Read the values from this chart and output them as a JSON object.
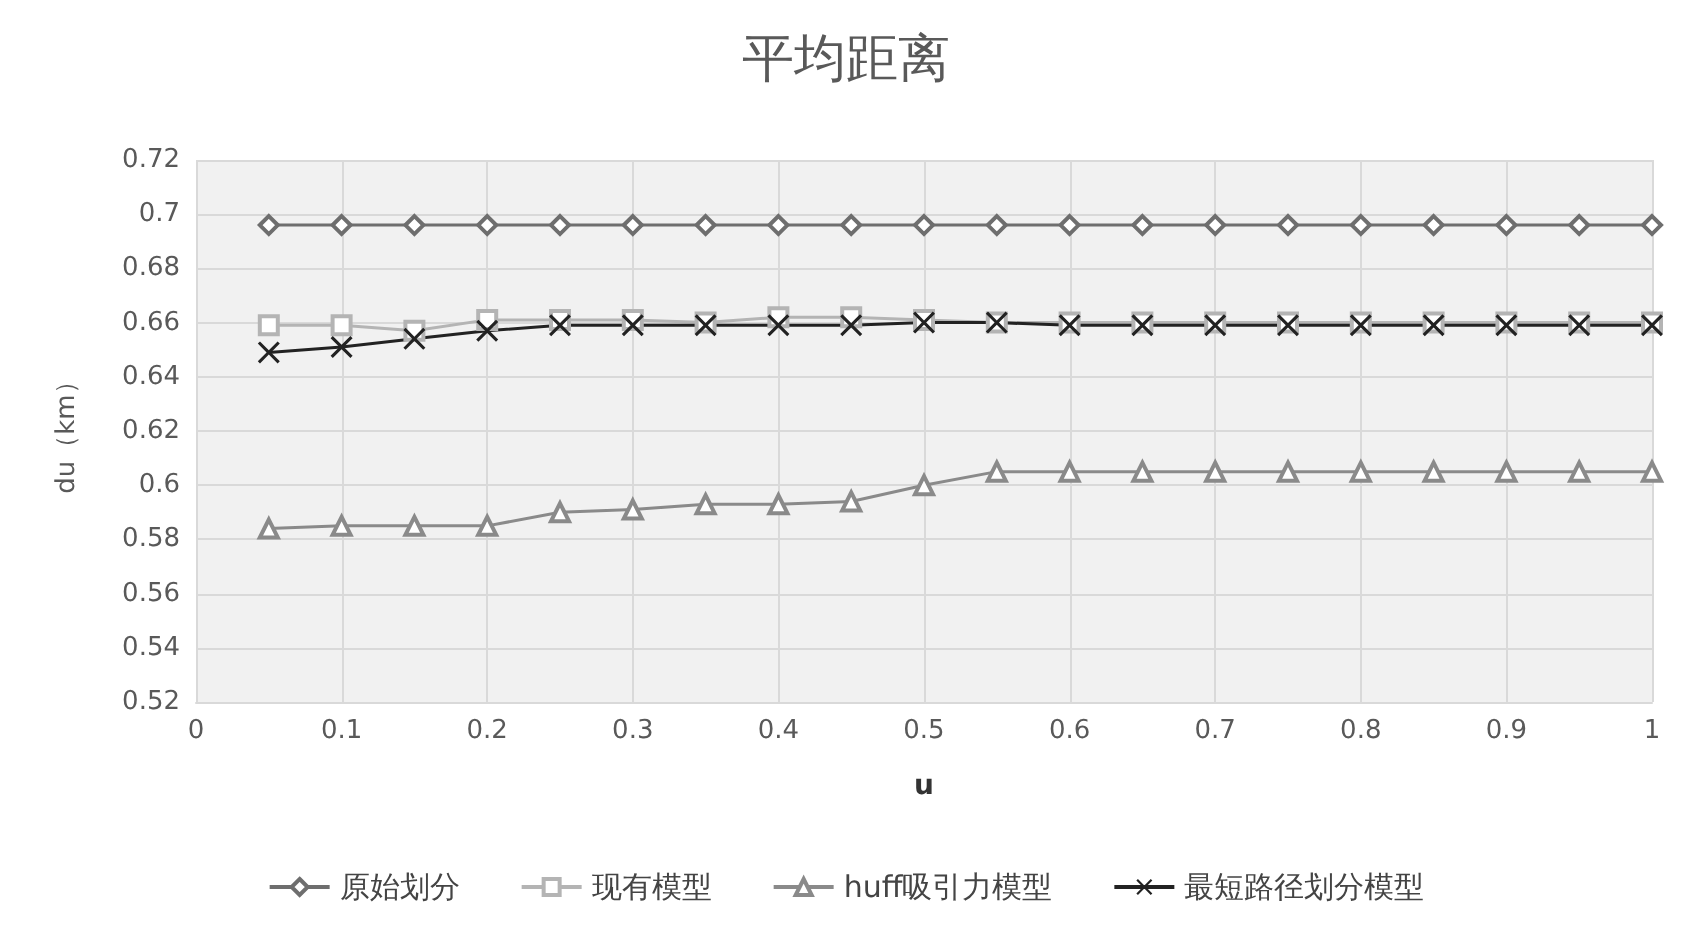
{
  "chart_data": {
    "type": "line",
    "title": "平均距离",
    "xlabel": "u",
    "ylabel": "du（km）",
    "x": [
      0.05,
      0.1,
      0.15,
      0.2,
      0.25,
      0.3,
      0.35,
      0.4,
      0.45,
      0.5,
      0.55,
      0.6,
      0.65,
      0.7,
      0.75,
      0.8,
      0.85,
      0.9,
      0.95,
      1
    ],
    "series": [
      {
        "name": "原始划分",
        "color": "#6e6e6e",
        "marker": "diamond",
        "values": [
          0.696,
          0.696,
          0.696,
          0.696,
          0.696,
          0.696,
          0.696,
          0.696,
          0.696,
          0.696,
          0.696,
          0.696,
          0.696,
          0.696,
          0.696,
          0.696,
          0.696,
          0.696,
          0.696,
          0.696
        ]
      },
      {
        "name": "现有模型",
        "color": "#b4b4b4",
        "marker": "square",
        "values": [
          0.659,
          0.659,
          0.657,
          0.661,
          0.661,
          0.661,
          0.66,
          0.662,
          0.662,
          0.661,
          0.66,
          0.66,
          0.66,
          0.66,
          0.66,
          0.66,
          0.66,
          0.66,
          0.66,
          0.66
        ]
      },
      {
        "name": "huff吸引力模型",
        "color": "#8a8a8a",
        "marker": "triangle",
        "values": [
          0.584,
          0.585,
          0.585,
          0.585,
          0.59,
          0.591,
          0.593,
          0.593,
          0.594,
          0.6,
          0.605,
          0.605,
          0.605,
          0.605,
          0.605,
          0.605,
          0.605,
          0.605,
          0.605,
          0.605
        ]
      },
      {
        "name": "最短路径划分模型",
        "color": "#222222",
        "marker": "cross",
        "values": [
          0.649,
          0.651,
          0.654,
          0.657,
          0.659,
          0.659,
          0.659,
          0.659,
          0.659,
          0.66,
          0.66,
          0.659,
          0.659,
          0.659,
          0.659,
          0.659,
          0.659,
          0.659,
          0.659,
          0.659
        ]
      }
    ],
    "xlim": [
      0,
      1
    ],
    "xticks": [
      0,
      0.1,
      0.2,
      0.3,
      0.4,
      0.5,
      0.6,
      0.7,
      0.8,
      0.9,
      1
    ],
    "ylim": [
      0.52,
      0.72
    ],
    "yticks": [
      0.52,
      0.54,
      0.56,
      0.58,
      0.6,
      0.62,
      0.64,
      0.66,
      0.68,
      0.7,
      0.72
    ],
    "grid": true,
    "legend": "bottom"
  }
}
